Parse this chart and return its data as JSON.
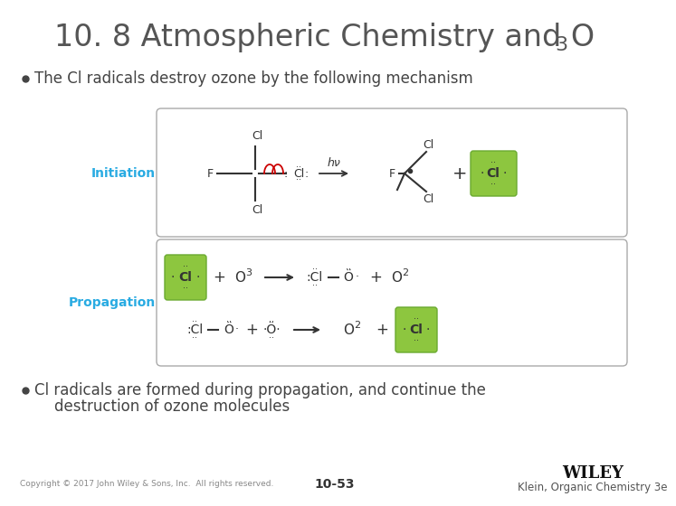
{
  "title_main": "10. 8 Atmospheric Chemistry and O",
  "title_sub": "3",
  "bullet1": "The Cl radicals destroy ozone by the following mechanism",
  "bullet2_line1": "Cl radicals are formed during propagation, and continue the",
  "bullet2_line2": "destruction of ozone molecules",
  "initiation_label": "Initiation",
  "propagation_label": "Propagation",
  "copyright": "Copyright © 2017 John Wiley & Sons, Inc.  All rights reserved.",
  "page_num": "10-53",
  "publisher": "WILEY",
  "book": "Klein, Organic Chemistry 3e",
  "bg_color": "#ffffff",
  "title_color": "#555555",
  "bullet_color": "#444444",
  "initiation_color": "#29abe2",
  "propagation_color": "#29abe2",
  "box_border_color": "#aaaaaa",
  "green_box_color": "#8dc63f",
  "text_color": "#333333",
  "red_arrow_color": "#cc0000"
}
